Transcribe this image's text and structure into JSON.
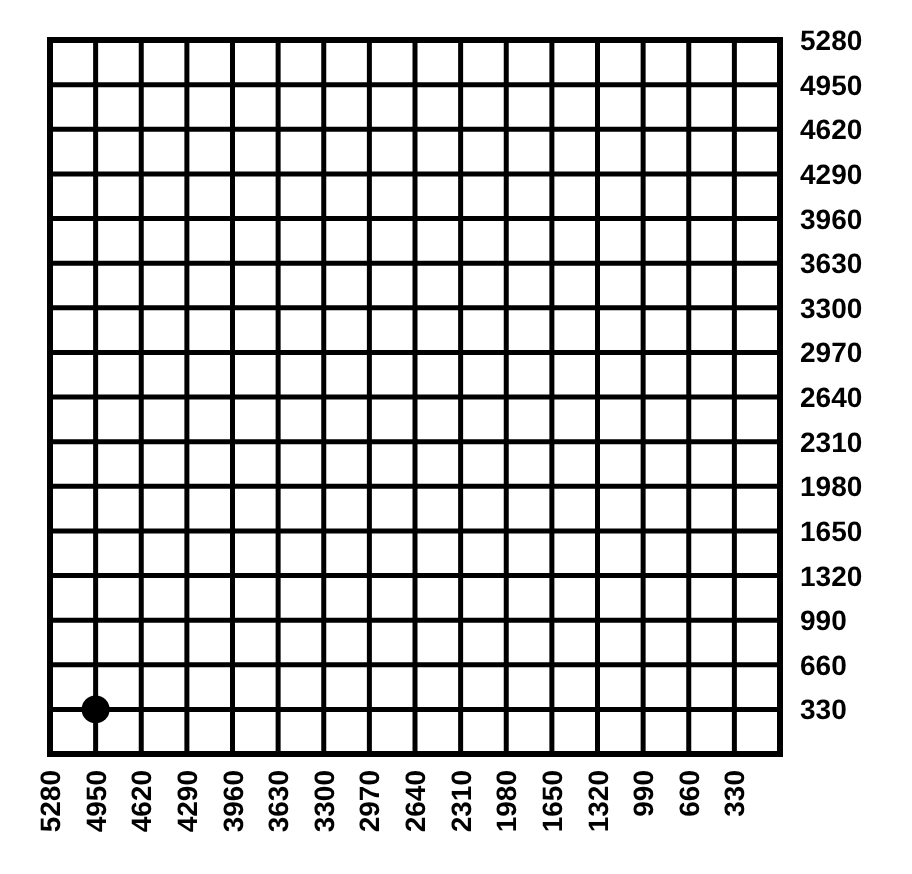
{
  "chart_data": {
    "type": "scatter",
    "x": [
      4950
    ],
    "values": [
      330
    ],
    "color": "#000000",
    "marker": "circle",
    "xlim": [
      5280,
      0
    ],
    "ylim": [
      0,
      5280
    ],
    "xticks": [
      5280,
      4950,
      4620,
      4290,
      3960,
      3630,
      3300,
      2970,
      2640,
      2310,
      1980,
      1650,
      1320,
      990,
      660,
      330
    ],
    "yticks": [
      330,
      660,
      990,
      1320,
      1650,
      1980,
      2310,
      2640,
      2970,
      3300,
      3630,
      3960,
      4290,
      4620,
      4950,
      5280
    ],
    "grid": true
  }
}
